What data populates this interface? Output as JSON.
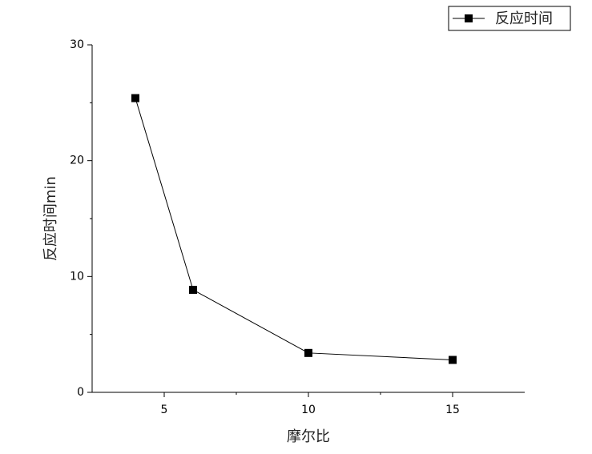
{
  "chart_data": {
    "type": "line",
    "x_label": "摩尔比",
    "y_label": "反应时间min",
    "x": [
      4,
      6,
      10,
      15
    ],
    "series": [
      {
        "name": "反应时间",
        "color": "#000000",
        "marker": "square",
        "values": [
          25.4,
          8.85,
          3.4,
          2.8
        ]
      }
    ],
    "xlim": [
      2.5,
      17.5
    ],
    "xticks": [
      5,
      10,
      15
    ],
    "xminorticks": [
      7.5,
      12.5
    ],
    "ylim": [
      0,
      30
    ],
    "yticks": [
      0,
      10,
      20,
      30
    ],
    "yminorticks": [
      5,
      15,
      25
    ],
    "grid": false,
    "legend": "top-right"
  }
}
